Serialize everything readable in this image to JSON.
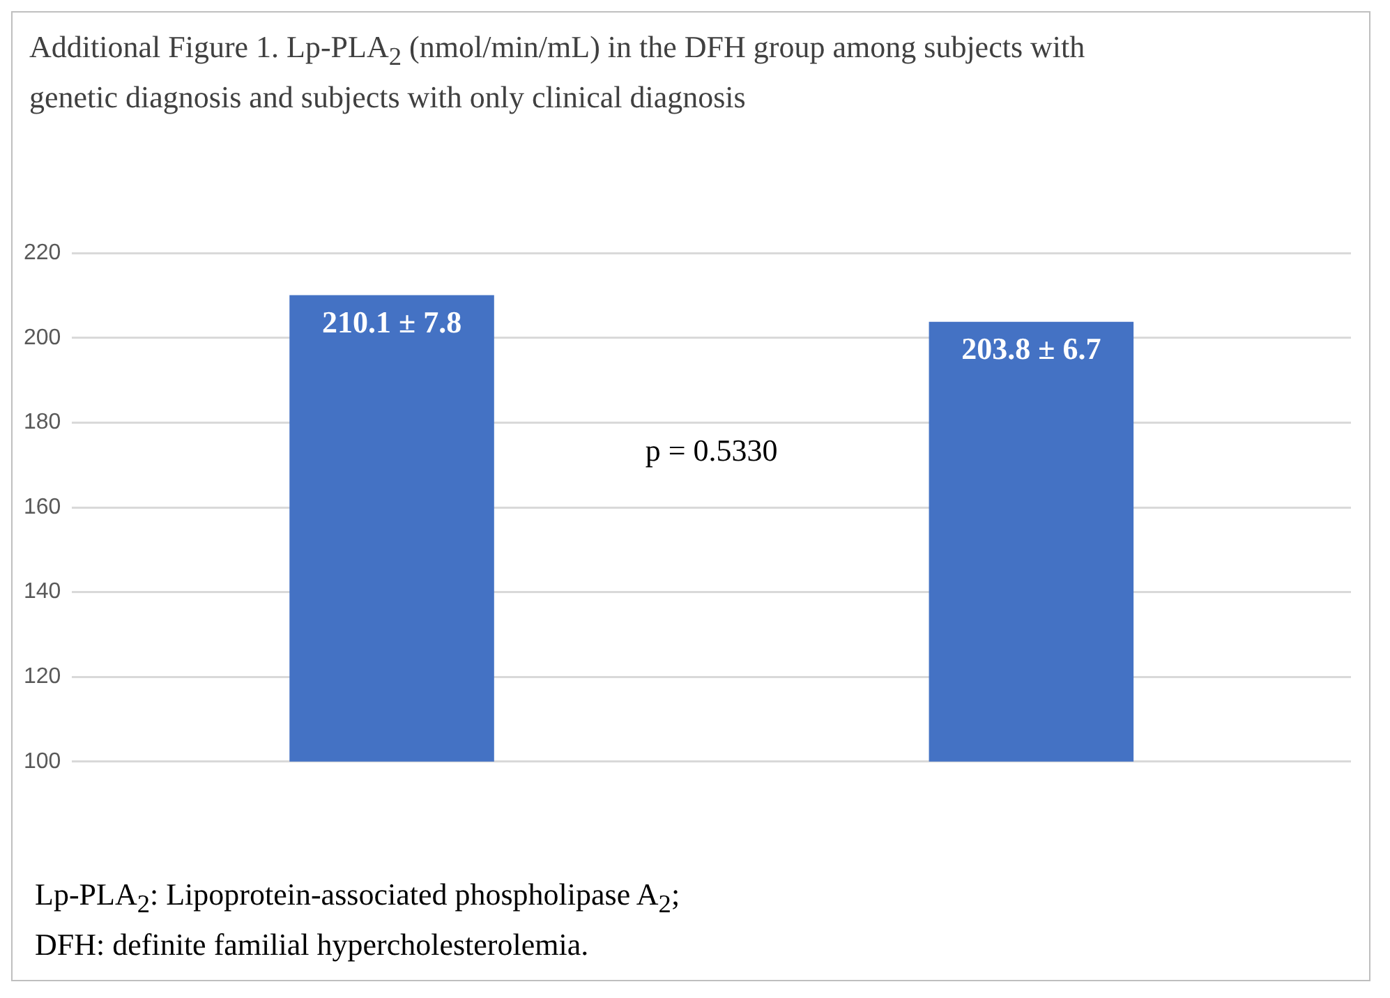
{
  "chart_data": {
    "type": "bar",
    "title": "Additional Figure 1. Lp-PLA$_{2}$ (nmol/min/mL) in the DFH group among subjects with genetic diagnosis and subjects with only clinical diagnosis",
    "categories": [
      null,
      null
    ],
    "values": [
      210.1,
      203.8
    ],
    "value_labels": [
      "210.1 ± 7.8",
      "203.8 ± 6.7"
    ],
    "color": "#4472c4",
    "ylim": [
      100,
      220
    ],
    "yticks": [
      100,
      120,
      140,
      160,
      180,
      200,
      220
    ],
    "grid": "y",
    "legend": false,
    "annotations": [
      "p = 0.5330",
      "Lp-PLA$_{2}$: Lipoprotein-associated phospholipase A$_{2}$;",
      "DFH: definite familial hypercholesterolemia."
    ]
  }
}
